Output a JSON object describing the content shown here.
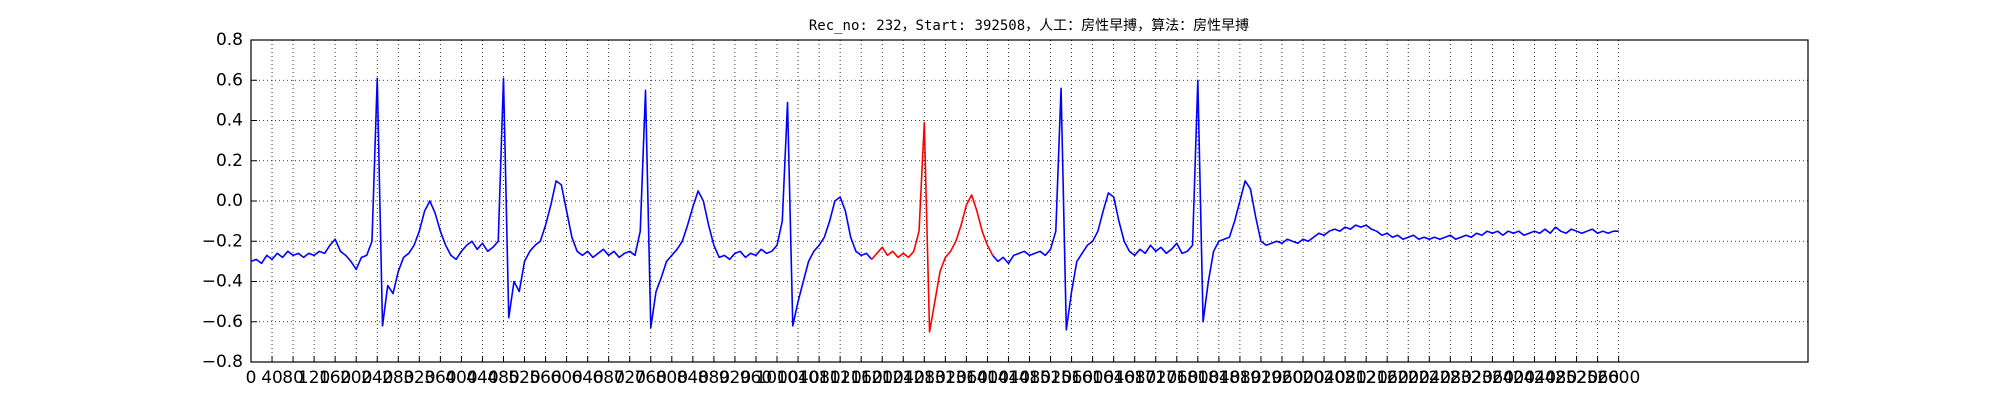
{
  "chart_data": {
    "type": "line",
    "title": "Rec_no: 232，Start: 392508，人工：房性早搏，算法：房性早搏",
    "grid": true,
    "xlim": [
      0,
      2960
    ],
    "ylim": [
      -0.8,
      0.8
    ],
    "xticks": [
      0,
      40,
      80,
      120,
      160,
      200,
      240,
      280,
      320,
      360,
      400,
      440,
      480,
      520,
      560,
      600,
      640,
      680,
      720,
      760,
      800,
      840,
      880,
      920,
      960,
      1000,
      1040,
      1080,
      1120,
      1160,
      1200,
      1240,
      1280,
      1320,
      1360,
      1400,
      1440,
      1480,
      1520,
      1560,
      1600,
      1640,
      1680,
      1720,
      1760,
      1800,
      1840,
      1880,
      1920,
      1960,
      2000,
      2040,
      2080,
      2120,
      2160,
      2200,
      2240,
      2280,
      2320,
      2360,
      2400,
      2440,
      2480,
      2520,
      2560,
      2600
    ],
    "yticks": [
      {
        "value": -0.8,
        "label": "−0.8"
      },
      {
        "value": -0.6,
        "label": "−0.6"
      },
      {
        "value": -0.4,
        "label": "−0.4"
      },
      {
        "value": -0.2,
        "label": "−0.2"
      },
      {
        "value": 0,
        "label": "0.0"
      },
      0.2,
      0.4,
      0.6,
      0.8
    ],
    "x": [
      0,
      10,
      20,
      30,
      40,
      50,
      60,
      70,
      80,
      90,
      100,
      110,
      120,
      130,
      140,
      150,
      160,
      170,
      180,
      190,
      200,
      210,
      220,
      230,
      240,
      250,
      260,
      270,
      280,
      290,
      300,
      310,
      320,
      330,
      340,
      350,
      360,
      370,
      380,
      390,
      400,
      410,
      420,
      430,
      440,
      450,
      460,
      470,
      480,
      490,
      500,
      510,
      520,
      530,
      540,
      550,
      560,
      570,
      580,
      590,
      600,
      610,
      620,
      630,
      640,
      650,
      660,
      670,
      680,
      690,
      700,
      710,
      720,
      730,
      740,
      750,
      760,
      770,
      780,
      790,
      800,
      810,
      820,
      830,
      840,
      850,
      860,
      870,
      880,
      890,
      900,
      910,
      920,
      930,
      940,
      950,
      960,
      970,
      980,
      990,
      1000,
      1010,
      1020,
      1030,
      1040,
      1050,
      1060,
      1070,
      1080,
      1090,
      1100,
      1110,
      1120,
      1130,
      1140,
      1150,
      1160,
      1170,
      1180,
      1190,
      1200,
      1210,
      1220,
      1230,
      1240,
      1250,
      1260,
      1270,
      1280,
      1290,
      1300,
      1310,
      1320,
      1330,
      1340,
      1350,
      1360,
      1370,
      1380,
      1390,
      1400,
      1410,
      1420,
      1430,
      1440,
      1450,
      1460,
      1470,
      1480,
      1490,
      1500,
      1510,
      1520,
      1530,
      1540,
      1550,
      1560,
      1570,
      1580,
      1590,
      1600,
      1610,
      1620,
      1630,
      1640,
      1650,
      1660,
      1670,
      1680,
      1690,
      1700,
      1710,
      1720,
      1730,
      1740,
      1750,
      1760,
      1770,
      1780,
      1790,
      1800,
      1810,
      1820,
      1830,
      1840,
      1850,
      1860,
      1870,
      1880,
      1890,
      1900,
      1910,
      1920,
      1930,
      1940,
      1950,
      1960,
      1970,
      1980,
      1990,
      2000,
      2010,
      2020,
      2030,
      2040,
      2050,
      2060,
      2070,
      2080,
      2090,
      2100,
      2110,
      2120,
      2130,
      2140,
      2150,
      2160,
      2170,
      2180,
      2190,
      2200,
      2210,
      2220,
      2230,
      2240,
      2250,
      2260,
      2270,
      2280,
      2290,
      2300,
      2310,
      2320,
      2330,
      2340,
      2350,
      2360,
      2370,
      2380,
      2390,
      2400,
      2410,
      2420,
      2430,
      2440,
      2450,
      2460,
      2470,
      2480,
      2490,
      2500,
      2510,
      2520,
      2530,
      2540,
      2550,
      2560,
      2570,
      2580,
      2590,
      2600
    ],
    "series": [
      {
        "color": "#0000ff",
        "values": [
          -0.3,
          -0.29,
          -0.31,
          -0.27,
          -0.29,
          -0.26,
          -0.28,
          -0.25,
          -0.27,
          -0.26,
          -0.28,
          -0.26,
          -0.27,
          -0.25,
          -0.26,
          -0.22,
          -0.19,
          -0.25,
          -0.27,
          -0.3,
          -0.34,
          -0.28,
          -0.27,
          -0.2,
          0.61,
          -0.62,
          -0.42,
          -0.46,
          -0.35,
          -0.28,
          -0.26,
          -0.22,
          -0.15,
          -0.05,
          0.0,
          -0.06,
          -0.15,
          -0.22,
          -0.27,
          -0.29,
          -0.25,
          -0.22,
          -0.2,
          -0.24,
          -0.21,
          -0.25,
          -0.23,
          -0.2,
          0.61,
          -0.58,
          -0.4,
          -0.45,
          -0.3,
          -0.25,
          -0.22,
          -0.2,
          -0.12,
          -0.02,
          0.1,
          0.08,
          -0.05,
          -0.18,
          -0.25,
          -0.27,
          -0.25,
          -0.28,
          -0.26,
          -0.24,
          -0.27,
          -0.25,
          -0.28,
          -0.26,
          -0.25,
          -0.27,
          -0.15,
          0.55,
          -0.63,
          -0.45,
          -0.38,
          -0.3,
          -0.27,
          -0.24,
          -0.2,
          -0.12,
          -0.03,
          0.05,
          0.0,
          -0.12,
          -0.22,
          -0.28,
          -0.27,
          -0.29,
          -0.26,
          -0.25,
          -0.28,
          -0.26,
          -0.27,
          -0.24,
          -0.26,
          -0.25,
          -0.22,
          -0.1,
          0.49,
          -0.62,
          -0.5,
          -0.4,
          -0.3,
          -0.25,
          -0.22,
          -0.18,
          -0.1,
          0.0,
          0.02,
          -0.05,
          -0.18,
          -0.25,
          -0.27,
          -0.26,
          -0.29,
          null,
          null,
          null,
          null,
          null,
          null,
          null,
          null,
          null,
          null,
          null,
          null,
          null,
          null,
          null,
          null,
          null,
          null,
          null,
          null,
          null,
          null,
          -0.27,
          -0.3,
          -0.28,
          -0.31,
          -0.27,
          -0.26,
          -0.25,
          -0.27,
          -0.26,
          -0.25,
          -0.27,
          -0.24,
          -0.15,
          0.56,
          -0.64,
          -0.45,
          -0.3,
          -0.26,
          -0.22,
          -0.2,
          -0.15,
          -0.05,
          0.04,
          0.02,
          -0.1,
          -0.2,
          -0.25,
          -0.27,
          -0.24,
          -0.26,
          -0.22,
          -0.25,
          -0.23,
          -0.26,
          -0.24,
          -0.21,
          -0.26,
          -0.25,
          -0.22,
          0.6,
          -0.6,
          -0.4,
          -0.25,
          -0.2,
          -0.19,
          -0.18,
          -0.1,
          0.0,
          0.1,
          0.06,
          -0.08,
          -0.2,
          -0.22,
          -0.21,
          -0.2,
          -0.21,
          -0.19,
          -0.2,
          -0.21,
          -0.19,
          -0.2,
          -0.18,
          -0.16,
          -0.17,
          -0.15,
          -0.14,
          -0.15,
          -0.13,
          -0.14,
          -0.12,
          -0.13,
          -0.12,
          -0.14,
          -0.15,
          -0.17,
          -0.16,
          -0.18,
          -0.17,
          -0.19,
          -0.18,
          -0.17,
          -0.19,
          -0.18,
          -0.19,
          -0.18,
          -0.19,
          -0.18,
          -0.17,
          -0.19,
          -0.18,
          -0.17,
          -0.18,
          -0.16,
          -0.17,
          -0.15,
          -0.16,
          -0.15,
          -0.17,
          -0.15,
          -0.16,
          -0.15,
          -0.17,
          -0.16,
          -0.15,
          -0.16,
          -0.14,
          -0.16,
          -0.13,
          -0.15,
          -0.16,
          -0.14,
          -0.15,
          -0.16,
          -0.15,
          -0.14,
          -0.16,
          -0.15,
          -0.16,
          -0.15,
          -0.15
        ]
      },
      {
        "color": "#ff0000",
        "values": [
          null,
          null,
          null,
          null,
          null,
          null,
          null,
          null,
          null,
          null,
          null,
          null,
          null,
          null,
          null,
          null,
          null,
          null,
          null,
          null,
          null,
          null,
          null,
          null,
          null,
          null,
          null,
          null,
          null,
          null,
          null,
          null,
          null,
          null,
          null,
          null,
          null,
          null,
          null,
          null,
          null,
          null,
          null,
          null,
          null,
          null,
          null,
          null,
          null,
          null,
          null,
          null,
          null,
          null,
          null,
          null,
          null,
          null,
          null,
          null,
          null,
          null,
          null,
          null,
          null,
          null,
          null,
          null,
          null,
          null,
          null,
          null,
          null,
          null,
          null,
          null,
          null,
          null,
          null,
          null,
          null,
          null,
          null,
          null,
          null,
          null,
          null,
          null,
          null,
          null,
          null,
          null,
          null,
          null,
          null,
          null,
          null,
          null,
          null,
          null,
          null,
          null,
          null,
          null,
          null,
          null,
          null,
          null,
          null,
          null,
          null,
          null,
          null,
          null,
          null,
          null,
          null,
          null,
          -0.29,
          -0.26,
          -0.23,
          -0.27,
          -0.25,
          -0.28,
          -0.26,
          -0.28,
          -0.25,
          -0.15,
          0.39,
          -0.65,
          -0.5,
          -0.35,
          -0.28,
          -0.25,
          -0.2,
          -0.12,
          -0.02,
          0.03,
          -0.05,
          -0.15,
          -0.22,
          -0.27,
          null,
          null,
          null,
          null,
          null,
          null,
          null,
          null,
          null,
          null,
          null,
          null,
          null,
          null,
          null,
          null,
          null,
          null,
          null,
          null,
          null,
          null,
          null,
          null,
          null,
          null,
          null,
          null,
          null,
          null,
          null,
          null,
          null,
          null,
          null,
          null,
          null,
          null,
          null,
          null,
          null,
          null,
          null,
          null,
          null,
          null,
          null,
          null,
          null,
          null,
          null,
          null,
          null,
          null,
          null,
          null,
          null,
          null,
          null,
          null,
          null,
          null,
          null,
          null,
          null,
          null,
          null,
          null,
          null,
          null,
          null,
          null,
          null,
          null,
          null,
          null,
          null,
          null,
          null,
          null,
          null,
          null,
          null,
          null,
          null,
          null,
          null,
          null,
          null,
          null,
          null,
          null,
          null,
          null,
          null,
          null,
          null,
          null,
          null,
          null,
          null,
          null,
          null,
          null,
          null,
          null,
          null,
          null,
          null,
          null,
          null,
          null,
          null,
          null,
          null,
          null,
          null,
          null,
          null
        ]
      }
    ]
  }
}
